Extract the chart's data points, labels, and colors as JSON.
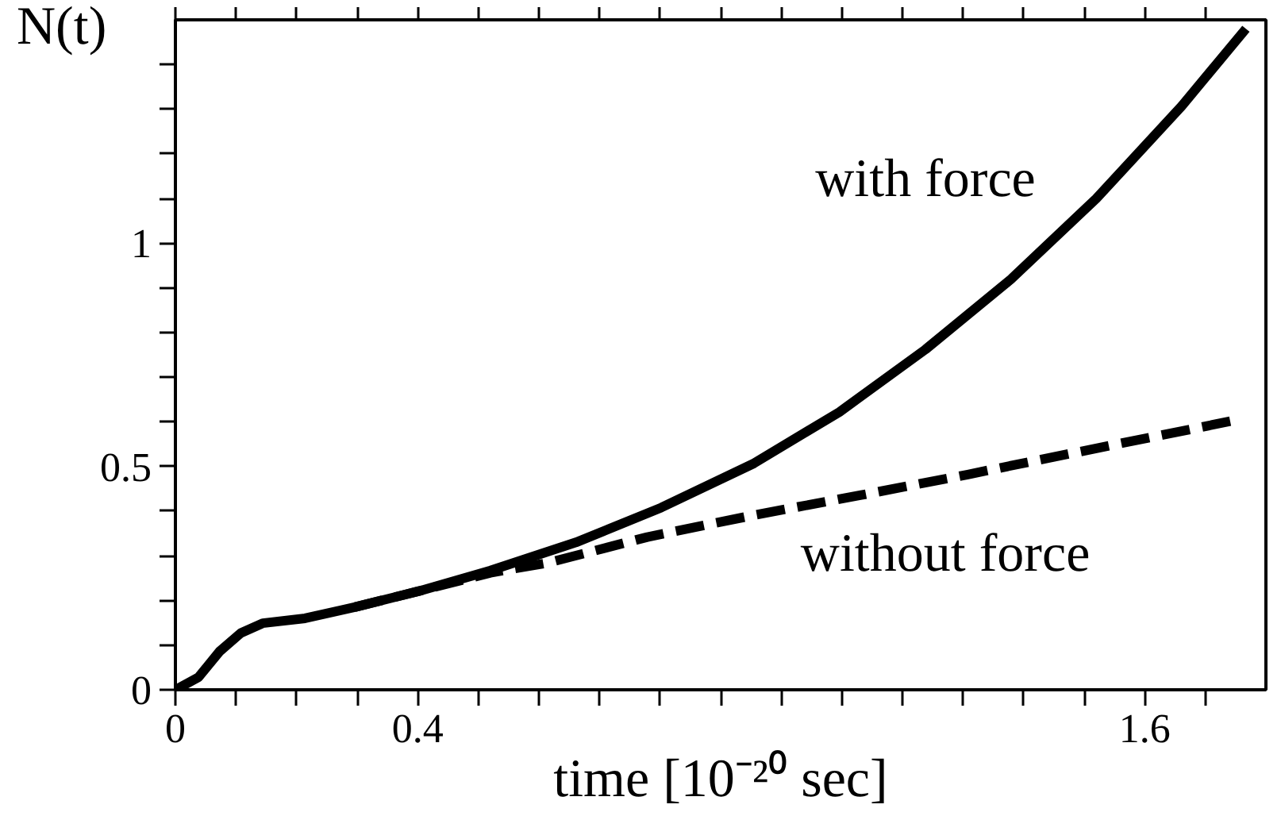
{
  "chart_data": {
    "type": "line",
    "xlabel": "time [10⁻²⁰ sec]",
    "ylabel": "N(t)",
    "xlim": [
      0,
      1.8
    ],
    "ylim": [
      0,
      1.5
    ],
    "xticks": [
      0,
      {
        "value": 0.1,
        "label": null
      },
      {
        "value": 0.2,
        "label": null
      },
      {
        "value": 0.3,
        "label": null
      },
      0.4,
      {
        "value": 0.5,
        "label": null
      },
      {
        "value": 0.6,
        "label": null
      },
      {
        "value": 0.7,
        "label": null
      },
      {
        "value": 0.8,
        "label": null
      },
      {
        "value": 0.9,
        "label": null
      },
      {
        "value": 1.0,
        "label": null
      },
      {
        "value": 1.1,
        "label": null
      },
      {
        "value": 1.2,
        "label": null
      },
      {
        "value": 1.3,
        "label": null
      },
      {
        "value": 1.4,
        "label": null
      },
      {
        "value": 1.5,
        "label": null
      },
      1.6,
      {
        "value": 1.7,
        "label": null
      }
    ],
    "yticks": [
      0,
      {
        "value": 0.1,
        "label": null
      },
      {
        "value": 0.2,
        "label": null
      },
      {
        "value": 0.3,
        "label": null
      },
      {
        "value": 0.4,
        "label": null
      },
      0.5,
      {
        "value": 0.6,
        "label": null
      },
      {
        "value": 0.7,
        "label": null
      },
      {
        "value": 0.8,
        "label": null
      },
      {
        "value": 0.9,
        "label": null
      },
      1,
      {
        "value": 1.1,
        "label": null
      },
      {
        "value": 1.2,
        "label": null
      },
      {
        "value": 1.3,
        "label": null
      },
      {
        "value": 1.4,
        "label": null
      }
    ],
    "grid": false,
    "series": [
      {
        "name": "with force",
        "color": "#000000",
        "line_style": "solid",
        "x": [
          0,
          0.038,
          0.073,
          0.108,
          0.144,
          0.214,
          0.296,
          0.402,
          0.52,
          0.661,
          0.802,
          0.955,
          1.096,
          1.238,
          1.379,
          1.52,
          1.661,
          1.767
        ],
        "values": [
          0,
          0.028,
          0.086,
          0.127,
          0.149,
          0.16,
          0.185,
          0.221,
          0.267,
          0.33,
          0.408,
          0.507,
          0.622,
          0.762,
          0.919,
          1.1,
          1.307,
          1.48
        ]
      },
      {
        "name": "without force",
        "color": "#000000",
        "line_style": "dashed",
        "x": [
          0.296,
          0.402,
          0.52,
          0.614,
          0.779,
          0.955,
          1.132,
          1.308,
          1.485,
          1.744
        ],
        "values": [
          0.185,
          0.221,
          0.262,
          0.284,
          0.342,
          0.391,
          0.436,
          0.482,
          0.531,
          0.602
        ]
      }
    ]
  }
}
